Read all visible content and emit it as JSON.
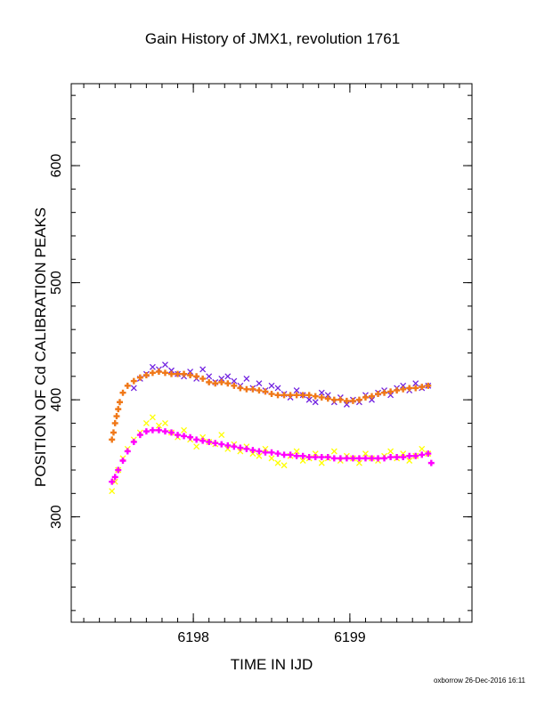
{
  "chart_data": {
    "type": "scatter",
    "title": "Gain History of JMX1, revolution 1761",
    "xlabel": "TIME IN IJD",
    "ylabel": "POSITION OF Cd CALIBRATION PEAKS",
    "xlim": [
      6197.22,
      6199.78
    ],
    "ylim": [
      210,
      670
    ],
    "x_ticks": [
      6198,
      6199
    ],
    "y_ticks": [
      300,
      400,
      500,
      600
    ],
    "grid": false,
    "series": [
      {
        "color": "#7020e0",
        "marker": "x",
        "points": [
          [
            6197.62,
            410
          ],
          [
            6197.66,
            418
          ],
          [
            6197.7,
            422
          ],
          [
            6197.74,
            428
          ],
          [
            6197.78,
            426
          ],
          [
            6197.82,
            430
          ],
          [
            6197.86,
            425
          ],
          [
            6197.9,
            422
          ],
          [
            6197.94,
            420
          ],
          [
            6197.98,
            424
          ],
          [
            6198.02,
            418
          ],
          [
            6198.06,
            426
          ],
          [
            6198.1,
            420
          ],
          [
            6198.14,
            415
          ],
          [
            6198.18,
            418
          ],
          [
            6198.22,
            420
          ],
          [
            6198.26,
            416
          ],
          [
            6198.3,
            412
          ],
          [
            6198.34,
            418
          ],
          [
            6198.38,
            410
          ],
          [
            6198.42,
            414
          ],
          [
            6198.46,
            408
          ],
          [
            6198.5,
            412
          ],
          [
            6198.54,
            410
          ],
          [
            6198.58,
            405
          ],
          [
            6198.62,
            402
          ],
          [
            6198.66,
            408
          ],
          [
            6198.7,
            404
          ],
          [
            6198.74,
            400
          ],
          [
            6198.78,
            398
          ],
          [
            6198.82,
            406
          ],
          [
            6198.86,
            404
          ],
          [
            6198.9,
            398
          ],
          [
            6198.94,
            402
          ],
          [
            6198.98,
            396
          ],
          [
            6199.02,
            400
          ],
          [
            6199.06,
            398
          ],
          [
            6199.1,
            404
          ],
          [
            6199.14,
            400
          ],
          [
            6199.18,
            406
          ],
          [
            6199.22,
            408
          ],
          [
            6199.26,
            404
          ],
          [
            6199.3,
            410
          ],
          [
            6199.34,
            412
          ],
          [
            6199.38,
            408
          ],
          [
            6199.42,
            414
          ],
          [
            6199.46,
            410
          ],
          [
            6199.5,
            412
          ]
        ]
      },
      {
        "color": "#f07818",
        "marker": "+",
        "points": [
          [
            6197.48,
            366
          ],
          [
            6197.49,
            372
          ],
          [
            6197.5,
            380
          ],
          [
            6197.51,
            386
          ],
          [
            6197.52,
            392
          ],
          [
            6197.53,
            398
          ],
          [
            6197.55,
            406
          ],
          [
            6197.58,
            412
          ],
          [
            6197.62,
            416
          ],
          [
            6197.66,
            419
          ],
          [
            6197.7,
            421
          ],
          [
            6197.74,
            423
          ],
          [
            6197.78,
            424
          ],
          [
            6197.82,
            423
          ],
          [
            6197.86,
            422
          ],
          [
            6197.9,
            422
          ],
          [
            6197.94,
            422
          ],
          [
            6197.98,
            421
          ],
          [
            6198.02,
            420
          ],
          [
            6198.06,
            418
          ],
          [
            6198.1,
            415
          ],
          [
            6198.14,
            414
          ],
          [
            6198.18,
            415
          ],
          [
            6198.22,
            414
          ],
          [
            6198.26,
            412
          ],
          [
            6198.3,
            410
          ],
          [
            6198.34,
            409
          ],
          [
            6198.38,
            409
          ],
          [
            6198.42,
            408
          ],
          [
            6198.46,
            407
          ],
          [
            6198.5,
            405
          ],
          [
            6198.54,
            404
          ],
          [
            6198.58,
            404
          ],
          [
            6198.62,
            404
          ],
          [
            6198.66,
            404
          ],
          [
            6198.7,
            404
          ],
          [
            6198.74,
            404
          ],
          [
            6198.78,
            403
          ],
          [
            6198.82,
            402
          ],
          [
            6198.86,
            401
          ],
          [
            6198.9,
            400
          ],
          [
            6198.94,
            400
          ],
          [
            6198.98,
            399
          ],
          [
            6199.02,
            399
          ],
          [
            6199.06,
            400
          ],
          [
            6199.1,
            402
          ],
          [
            6199.14,
            403
          ],
          [
            6199.18,
            405
          ],
          [
            6199.22,
            406
          ],
          [
            6199.26,
            407
          ],
          [
            6199.3,
            408
          ],
          [
            6199.34,
            409
          ],
          [
            6199.38,
            410
          ],
          [
            6199.42,
            410
          ],
          [
            6199.46,
            411
          ],
          [
            6199.5,
            412
          ]
        ]
      },
      {
        "color": "#ffff00",
        "marker": "x",
        "points": [
          [
            6197.48,
            322
          ],
          [
            6197.5,
            330
          ],
          [
            6197.52,
            340
          ],
          [
            6197.55,
            350
          ],
          [
            6197.58,
            358
          ],
          [
            6197.62,
            366
          ],
          [
            6197.66,
            372
          ],
          [
            6197.7,
            380
          ],
          [
            6197.74,
            385
          ],
          [
            6197.78,
            378
          ],
          [
            6197.82,
            380
          ],
          [
            6197.86,
            372
          ],
          [
            6197.9,
            368
          ],
          [
            6197.94,
            374
          ],
          [
            6197.98,
            366
          ],
          [
            6198.02,
            360
          ],
          [
            6198.06,
            368
          ],
          [
            6198.1,
            364
          ],
          [
            6198.14,
            362
          ],
          [
            6198.18,
            370
          ],
          [
            6198.22,
            358
          ],
          [
            6198.26,
            362
          ],
          [
            6198.3,
            356
          ],
          [
            6198.34,
            360
          ],
          [
            6198.38,
            354
          ],
          [
            6198.42,
            352
          ],
          [
            6198.46,
            358
          ],
          [
            6198.5,
            350
          ],
          [
            6198.54,
            346
          ],
          [
            6198.58,
            344
          ],
          [
            6198.62,
            352
          ],
          [
            6198.66,
            356
          ],
          [
            6198.7,
            348
          ],
          [
            6198.74,
            350
          ],
          [
            6198.78,
            354
          ],
          [
            6198.82,
            346
          ],
          [
            6198.86,
            350
          ],
          [
            6198.9,
            356
          ],
          [
            6198.94,
            348
          ],
          [
            6198.98,
            352
          ],
          [
            6199.02,
            350
          ],
          [
            6199.06,
            346
          ],
          [
            6199.1,
            354
          ],
          [
            6199.14,
            350
          ],
          [
            6199.18,
            348
          ],
          [
            6199.22,
            352
          ],
          [
            6199.26,
            356
          ],
          [
            6199.3,
            350
          ],
          [
            6199.34,
            354
          ],
          [
            6199.38,
            348
          ],
          [
            6199.42,
            352
          ],
          [
            6199.46,
            358
          ],
          [
            6199.5,
            354
          ]
        ]
      },
      {
        "color": "#ff00ff",
        "marker": "+",
        "points": [
          [
            6197.48,
            330
          ],
          [
            6197.5,
            334
          ],
          [
            6197.52,
            340
          ],
          [
            6197.55,
            348
          ],
          [
            6197.58,
            356
          ],
          [
            6197.62,
            364
          ],
          [
            6197.66,
            370
          ],
          [
            6197.7,
            373
          ],
          [
            6197.74,
            374
          ],
          [
            6197.78,
            374
          ],
          [
            6197.82,
            373
          ],
          [
            6197.86,
            372
          ],
          [
            6197.9,
            370
          ],
          [
            6197.94,
            369
          ],
          [
            6197.98,
            368
          ],
          [
            6198.02,
            366
          ],
          [
            6198.06,
            365
          ],
          [
            6198.1,
            364
          ],
          [
            6198.14,
            363
          ],
          [
            6198.18,
            362
          ],
          [
            6198.22,
            361
          ],
          [
            6198.26,
            360
          ],
          [
            6198.3,
            359
          ],
          [
            6198.34,
            358
          ],
          [
            6198.38,
            357
          ],
          [
            6198.42,
            356
          ],
          [
            6198.46,
            355
          ],
          [
            6198.5,
            355
          ],
          [
            6198.54,
            354
          ],
          [
            6198.58,
            353
          ],
          [
            6198.62,
            353
          ],
          [
            6198.66,
            352
          ],
          [
            6198.7,
            352
          ],
          [
            6198.74,
            351
          ],
          [
            6198.78,
            351
          ],
          [
            6198.82,
            351
          ],
          [
            6198.86,
            351
          ],
          [
            6198.9,
            350
          ],
          [
            6198.94,
            350
          ],
          [
            6198.98,
            350
          ],
          [
            6199.02,
            350
          ],
          [
            6199.06,
            350
          ],
          [
            6199.1,
            350
          ],
          [
            6199.14,
            350
          ],
          [
            6199.18,
            350
          ],
          [
            6199.22,
            350
          ],
          [
            6199.26,
            351
          ],
          [
            6199.3,
            351
          ],
          [
            6199.34,
            351
          ],
          [
            6199.38,
            352
          ],
          [
            6199.42,
            352
          ],
          [
            6199.46,
            353
          ],
          [
            6199.5,
            354
          ],
          [
            6199.52,
            346
          ]
        ]
      }
    ]
  },
  "credit": "oxborrow 26-Dec-2016 16:11"
}
